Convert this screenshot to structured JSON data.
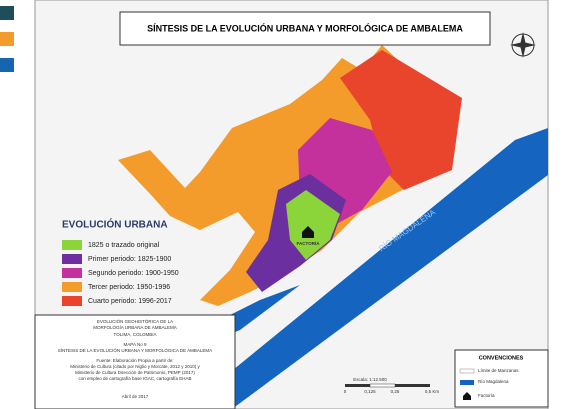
{
  "title": "SÍNTESIS DE LA EVOLUCIÓN URBANA Y MORFOLÓGICA DE AMBALEMA",
  "legend": {
    "title": "EVOLUCIÓN URBANA",
    "items": [
      "1825 o trazado original",
      "Primer periodo: 1825-1900",
      "Segundo periodo: 1900-1950",
      "Tercer periodo: 1950-1996",
      "Cuarto periodo: 1996-2017"
    ]
  },
  "labels": {
    "river": "RÍO MAGDALENA",
    "factory": "FACTORÍA"
  },
  "info_box": {
    "lines": [
      "EVOLUCIÓN GEOHISTÓRICA DE LA",
      "MORFOLOGÍA URBANA DE AMBALEMA",
      "TOLIMA, COLOMBIA",
      "MAPA No 9",
      "SÍNTESIS DE LA EVOLUCIÓN URBANA Y MORFOLÓGICA DE AMBALEMA",
      "Fuente: Elaboración Propia a partir de:",
      "Ministerio de Cultura (citado por Niglio y Morcate, 2012 y 2010) y",
      "Ministerio de Cultura Dirección de Patrimonio, PEMP (2017)",
      "con empleo de cartografía base IGAC, cartografía EHAB",
      "Abril de 2017"
    ]
  },
  "scale": {
    "title": "Escala: 1:12.500",
    "ticks": [
      "0",
      "0,125",
      "0,25",
      "0,5 Km"
    ]
  },
  "conventions": {
    "title": "CONVENCIONES",
    "items": [
      "Límite de Manzanas",
      "Río Magdalena",
      "Factoría"
    ]
  }
}
